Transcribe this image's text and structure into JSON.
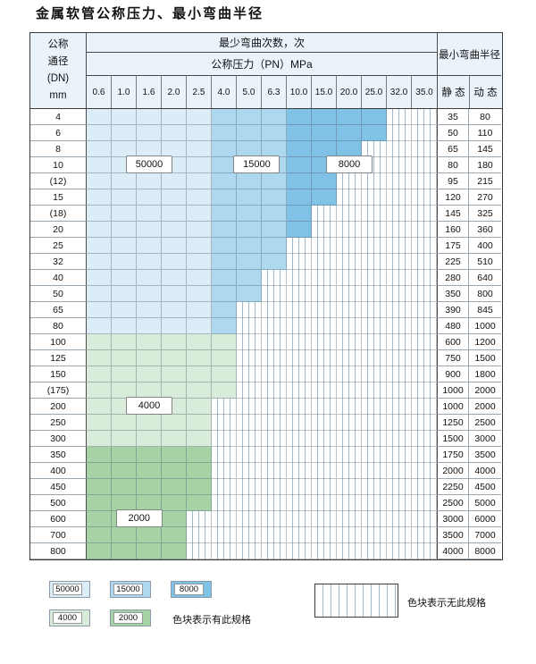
{
  "chart_data": {
    "type": "table",
    "title": "金属软管公称压力、最小弯曲半径",
    "pressure_columns": [
      "0.6",
      "1.0",
      "1.6",
      "2.0",
      "2.5",
      "4.0",
      "5.0",
      "6.3",
      "10.0",
      "15.0",
      "20.0",
      "25.0",
      "32.0",
      "35.0"
    ],
    "cycle_zones": {
      "blue_by_column": [
        {
          "cycles": "50000",
          "col_start": 0,
          "col_end": 4,
          "color_key": "c50000"
        },
        {
          "cycles": "15000",
          "col_start": 5,
          "col_end": 7,
          "color_key": "c15000"
        },
        {
          "cycles": "8000",
          "col_start": 8,
          "col_end": 13,
          "color_key": "c8000"
        }
      ],
      "green_by_row": [
        {
          "cycles": "4000",
          "color_key": "c4000"
        },
        {
          "cycles": "2000",
          "color_key": "c2000"
        }
      ]
    },
    "rows": [
      {
        "dn": "4",
        "max_col": 11,
        "zone": "blue",
        "static": "35",
        "dynamic": "80"
      },
      {
        "dn": "6",
        "max_col": 11,
        "zone": "blue",
        "static": "50",
        "dynamic": "110"
      },
      {
        "dn": "8",
        "max_col": 10,
        "zone": "blue",
        "static": "65",
        "dynamic": "145"
      },
      {
        "dn": "10",
        "max_col": 10,
        "zone": "blue",
        "static": "80",
        "dynamic": "180"
      },
      {
        "dn": "(12)",
        "max_col": 9,
        "zone": "blue",
        "static": "95",
        "dynamic": "215"
      },
      {
        "dn": "15",
        "max_col": 9,
        "zone": "blue",
        "static": "120",
        "dynamic": "270"
      },
      {
        "dn": "(18)",
        "max_col": 8,
        "zone": "blue",
        "static": "145",
        "dynamic": "325"
      },
      {
        "dn": "20",
        "max_col": 8,
        "zone": "blue",
        "static": "160",
        "dynamic": "360"
      },
      {
        "dn": "25",
        "max_col": 7,
        "zone": "blue",
        "static": "175",
        "dynamic": "400"
      },
      {
        "dn": "32",
        "max_col": 7,
        "zone": "blue",
        "static": "225",
        "dynamic": "510"
      },
      {
        "dn": "40",
        "max_col": 6,
        "zone": "blue",
        "static": "280",
        "dynamic": "640"
      },
      {
        "dn": "50",
        "max_col": 6,
        "zone": "blue",
        "static": "350",
        "dynamic": "800"
      },
      {
        "dn": "65",
        "max_col": 5,
        "zone": "blue",
        "static": "390",
        "dynamic": "845"
      },
      {
        "dn": "80",
        "max_col": 5,
        "zone": "blue",
        "static": "480",
        "dynamic": "1000"
      },
      {
        "dn": "100",
        "max_col": 5,
        "zone": "green4000",
        "static": "600",
        "dynamic": "1200"
      },
      {
        "dn": "125",
        "max_col": 5,
        "zone": "green4000",
        "static": "750",
        "dynamic": "1500"
      },
      {
        "dn": "150",
        "max_col": 5,
        "zone": "green4000",
        "static": "900",
        "dynamic": "1800"
      },
      {
        "dn": "(175)",
        "max_col": 5,
        "zone": "green4000",
        "static": "1000",
        "dynamic": "2000"
      },
      {
        "dn": "200",
        "max_col": 4,
        "zone": "green4000",
        "static": "1000",
        "dynamic": "2000"
      },
      {
        "dn": "250",
        "max_col": 4,
        "zone": "green4000",
        "static": "1250",
        "dynamic": "2500"
      },
      {
        "dn": "300",
        "max_col": 4,
        "zone": "green4000",
        "static": "1500",
        "dynamic": "3000"
      },
      {
        "dn": "350",
        "max_col": 4,
        "zone": "green2000",
        "static": "1750",
        "dynamic": "3500"
      },
      {
        "dn": "400",
        "max_col": 4,
        "zone": "green2000",
        "static": "2000",
        "dynamic": "4000"
      },
      {
        "dn": "450",
        "max_col": 4,
        "zone": "green2000",
        "static": "2250",
        "dynamic": "4500"
      },
      {
        "dn": "500",
        "max_col": 4,
        "zone": "green2000",
        "static": "2500",
        "dynamic": "5000"
      },
      {
        "dn": "600",
        "max_col": 3,
        "zone": "green2000",
        "static": "3000",
        "dynamic": "6000"
      },
      {
        "dn": "700",
        "max_col": 3,
        "zone": "green2000",
        "static": "3500",
        "dynamic": "7000"
      },
      {
        "dn": "800",
        "max_col": 3,
        "zone": "green2000",
        "static": "4000",
        "dynamic": "8000"
      }
    ]
  },
  "header": {
    "dn_lines": [
      "公称",
      "通径",
      "(DN)",
      "mm"
    ],
    "bend_times": "最少弯曲次数，次",
    "pressure_label": "公称压力（PN）MPa",
    "radius_label": "最小弯曲半径",
    "static_label": "静 态",
    "dynamic_label": "动 态"
  },
  "overlays": [
    {
      "label": "50000",
      "row_index": 3,
      "center_col": 2.0
    },
    {
      "label": "15000",
      "row_index": 3,
      "center_col": 6.3
    },
    {
      "label": "8000",
      "row_index": 3,
      "center_col": 10.0
    },
    {
      "label": "4000",
      "row_index": 18,
      "center_col": 2.0
    },
    {
      "label": "2000",
      "row_index": 25,
      "center_col": 1.6
    }
  ],
  "legend": {
    "items": [
      {
        "label": "50000",
        "color_key": "c50000"
      },
      {
        "label": "15000",
        "color_key": "c15000"
      },
      {
        "label": "8000",
        "color_key": "c8000"
      },
      {
        "label": "4000",
        "color_key": "c4000"
      },
      {
        "label": "2000",
        "color_key": "c2000"
      }
    ],
    "has_spec": "色块表示有此规格",
    "no_spec": "色块表示无此规格"
  },
  "colors": {
    "c50000": "#dcedf8",
    "c15000": "#aed8ef",
    "c8000": "#7fc2e6",
    "c4000": "#d9ecd9",
    "c2000": "#a6d3a6",
    "header_bg": "#eaf3fa",
    "hatch_line": "#a3b8cc",
    "border_dark": "#3c3c3c",
    "grid_line": "#9aa6b0"
  }
}
